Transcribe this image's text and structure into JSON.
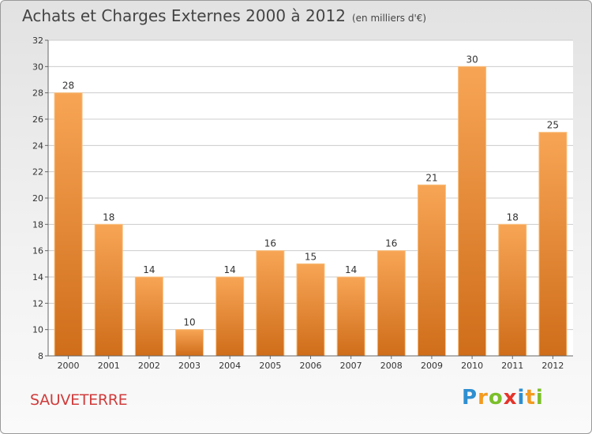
{
  "title": "Achats et Charges Externes 2000 à 2012",
  "subtitle": "(en milliers d'€)",
  "commune": "SAUVETERRE",
  "logo": {
    "text": "Proxiti",
    "letters": [
      {
        "ch": "P",
        "color": "#2e8fd0"
      },
      {
        "ch": "r",
        "color": "#f39a1f"
      },
      {
        "ch": "o",
        "color": "#7bbf2a"
      },
      {
        "ch": "x",
        "color": "#e5342a"
      },
      {
        "ch": "i",
        "color": "#2e8fd0"
      },
      {
        "ch": "t",
        "color": "#f39a1f"
      },
      {
        "ch": "i",
        "color": "#7bbf2a"
      }
    ]
  },
  "colors": {
    "bar_top": "#f7a555",
    "bar_bottom": "#cf6d1a",
    "bar_edge": "#f9c07f",
    "grid": "#cccccc",
    "axis_text": "#333333",
    "title": "#444444",
    "commune": "#d13b3b"
  },
  "chart_data": {
    "type": "bar",
    "title": "Achats et Charges Externes 2000 à 2012",
    "subtitle": "(en milliers d'€)",
    "categories": [
      "2000",
      "2001",
      "2002",
      "2003",
      "2004",
      "2005",
      "2006",
      "2007",
      "2008",
      "2009",
      "2010",
      "2011",
      "2012"
    ],
    "values": [
      28,
      18,
      14,
      10,
      14,
      16,
      15,
      14,
      16,
      21,
      30,
      18,
      25
    ],
    "ylim": [
      8,
      32
    ],
    "yticks": [
      8,
      10,
      12,
      14,
      16,
      18,
      20,
      22,
      24,
      26,
      28,
      30,
      32
    ],
    "grid": true,
    "legend": "none"
  }
}
